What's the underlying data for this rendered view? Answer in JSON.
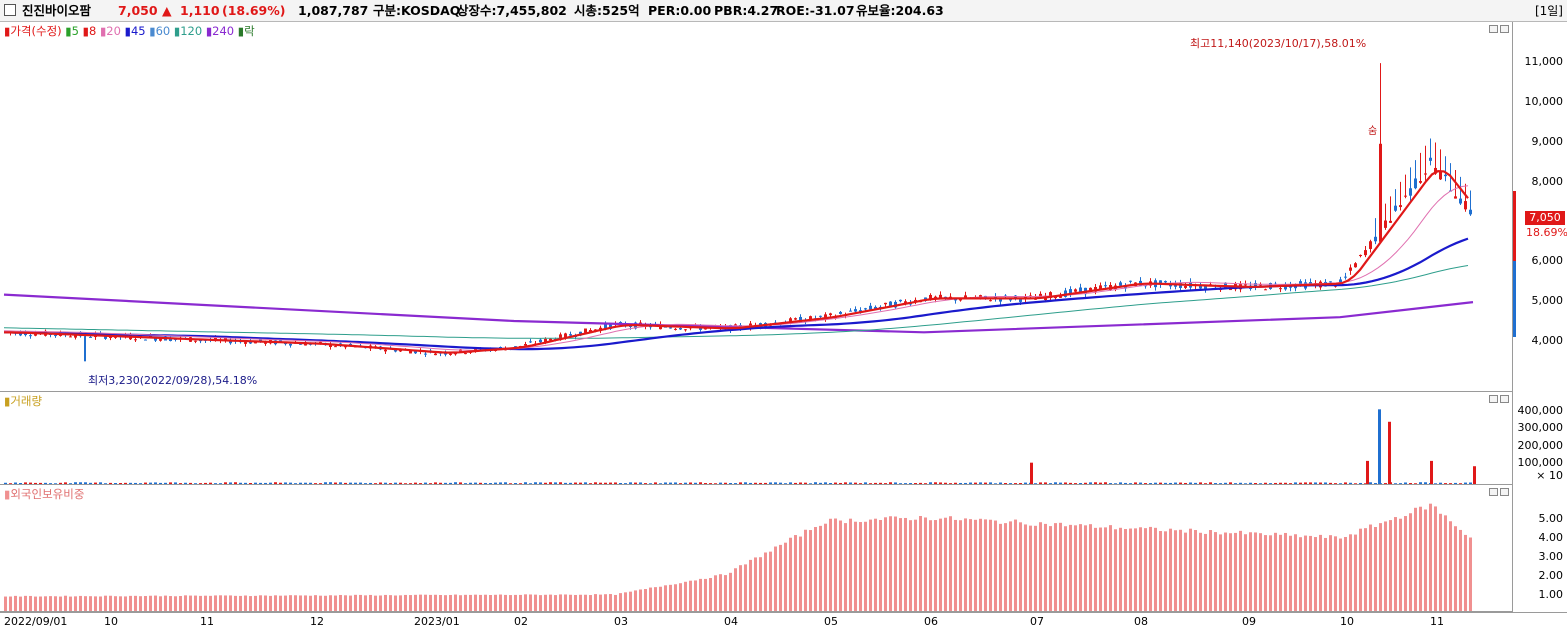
{
  "header": {
    "stock_name": "진진바이오팜",
    "price": "7,050",
    "change_arrow": "▲",
    "change": "1,110",
    "change_pct": "(18.69%)",
    "volume": "1,087,787",
    "market": "구분:KOSDAQ",
    "shares": "상장수:7,455,802",
    "market_cap": "시총:525억",
    "per": "PER:0.00",
    "pbr": "PBR:4.27",
    "roe": "ROE:-31.07",
    "retention": "유보율:204.63",
    "period": "[1일]"
  },
  "colors": {
    "up": "#e01818",
    "down": "#1f6fd0",
    "ma5": "#e01818",
    "ma20": "#e070b0",
    "ma45": "#1a1acc",
    "ma120": "#2e9e8c",
    "ma240": "#8a2ad0",
    "volume_up": "#e01818",
    "volume_down": "#1f6fd0",
    "foreign": "#f09090"
  },
  "price_panel": {
    "legend": [
      {
        "label": "가격(수정)",
        "color": "#e01818"
      },
      {
        "label": "5",
        "color": "#2aa12a"
      },
      {
        "label": "8",
        "color": "#e01818"
      },
      {
        "label": "20",
        "color": "#e070b0"
      },
      {
        "label": "45",
        "color": "#1a1acc"
      },
      {
        "label": "60",
        "color": "#4a8ad0"
      },
      {
        "label": "120",
        "color": "#2e9e8c"
      },
      {
        "label": "240",
        "color": "#8a2ad0"
      },
      {
        "label": "락",
        "color": "#2a7a2a"
      }
    ],
    "high_annotation": "최고11,140(2023/10/17),58.01%",
    "low_annotation": "최저3,230(2022/09/28),54.18%",
    "marker_label": "숨",
    "current_price_tag": "7,050",
    "current_pct_tag": "18.69%",
    "y_ticks": [
      "11,000",
      "10,000",
      "9,000",
      "8,000",
      "6,000",
      "5,000",
      "4,000"
    ]
  },
  "volume_panel": {
    "legend": "거래량",
    "y_ticks": [
      "400,000",
      "300,000",
      "200,000",
      "100,000"
    ],
    "unit_label": "× 10"
  },
  "foreign_panel": {
    "legend": "외국인보유비중",
    "y_ticks": [
      "5.00",
      "4.00",
      "3.00",
      "2.00",
      "1.00"
    ]
  },
  "x_axis": {
    "labels": [
      "2022/09/01",
      "10",
      "11",
      "12",
      "2023/01",
      "02",
      "03",
      "04",
      "05",
      "06",
      "07",
      "08",
      "09",
      "10",
      "11"
    ]
  },
  "chart_data": {
    "type": "line",
    "price_key_points": [
      {
        "date": "2022/09/01",
        "close": 4000
      },
      {
        "date": "2022/09/28",
        "low": 3230
      },
      {
        "date": "2022/10",
        "close": 3900
      },
      {
        "date": "2022/11",
        "close": 3800
      },
      {
        "date": "2022/12",
        "close": 3700
      },
      {
        "date": "2023/01",
        "close": 3450
      },
      {
        "date": "2023/02",
        "close": 3600
      },
      {
        "date": "2023/03",
        "close": 4200
      },
      {
        "date": "2023/04",
        "close": 4100
      },
      {
        "date": "2023/05",
        "close": 4400
      },
      {
        "date": "2023/06",
        "close": 4900
      },
      {
        "date": "2023/07",
        "close": 4900
      },
      {
        "date": "2023/08",
        "close": 5300
      },
      {
        "date": "2023/09",
        "close": 5200
      },
      {
        "date": "2023/10",
        "close": 5300
      },
      {
        "date": "2023/10/17",
        "high": 11140
      },
      {
        "date": "2023/11",
        "close": 8500
      },
      {
        "date": "last",
        "close": 7050
      }
    ],
    "ma240": [
      {
        "date": "2022/09/01",
        "value": 5000
      },
      {
        "date": "2023/02",
        "value": 4300
      },
      {
        "date": "2023/06",
        "value": 4000
      },
      {
        "date": "2023/10",
        "value": 4400
      },
      {
        "date": "last",
        "value": 4800
      }
    ],
    "volume_spikes_x10": [
      {
        "date": "2023/10/17",
        "value": 420000
      },
      {
        "date": "2023/10/19",
        "value": 350000
      },
      {
        "date": "2023/10/16",
        "value": 130000
      },
      {
        "date": "2023/11",
        "value": 130000
      },
      {
        "date": "2023/07",
        "value": 120000
      },
      {
        "date": "last",
        "value": 100000
      }
    ],
    "foreign_ratio": [
      {
        "date": "2022/09",
        "value": 0.8
      },
      {
        "date": "2023/03",
        "value": 0.9
      },
      {
        "date": "2023/04",
        "value": 2.0
      },
      {
        "date": "2023/05",
        "value": 4.9
      },
      {
        "date": "2023/06",
        "value": 5.1
      },
      {
        "date": "2023/08",
        "value": 4.5
      },
      {
        "date": "2023/10",
        "value": 4.0
      },
      {
        "date": "2023/11",
        "value": 5.8
      },
      {
        "date": "last",
        "value": 3.8
      }
    ],
    "price_ylim": [
      3000,
      11700
    ],
    "volume_ylim": [
      0,
      450000
    ],
    "foreign_ylim": [
      0,
      6.0
    ]
  }
}
